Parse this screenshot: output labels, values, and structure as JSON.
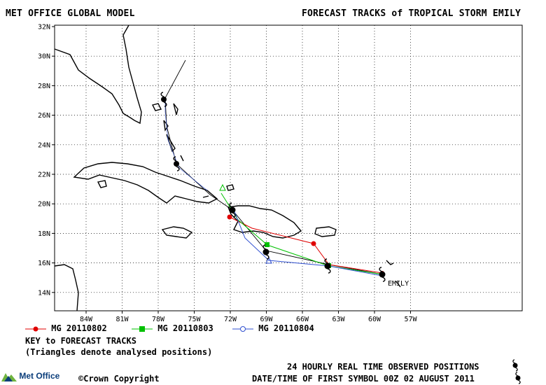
{
  "header": {
    "left_title": "MET OFFICE GLOBAL MODEL",
    "right_title": "FORECAST TRACKS of TROPICAL STORM EMILY"
  },
  "map": {
    "lat_labels": [
      "32N",
      "30N",
      "28N",
      "26N",
      "24N",
      "22N",
      "20N",
      "18N",
      "16N",
      "14N"
    ],
    "lon_labels": [
      "84W",
      "81W",
      "78W",
      "75W",
      "72W",
      "69W",
      "66W",
      "63W",
      "60W",
      "57W"
    ],
    "storm_label": "EMILY",
    "colors": {
      "red": "#e00000",
      "green": "#00c000",
      "blue": "#3050d0",
      "observed": "#000000"
    }
  },
  "legend": [
    {
      "label": "MG 20110802",
      "color": "#e00000",
      "marker": "circle"
    },
    {
      "label": "MG 20110803",
      "color": "#00c000",
      "marker": "square"
    },
    {
      "label": "MG 20110804",
      "color": "#3050d0",
      "marker": "circle-open"
    }
  ],
  "key": {
    "title": "KEY to FORECAST TRACKS",
    "note": "(Triangles denote analysed positions)"
  },
  "footer": {
    "observed": "24 HOURLY REAL TIME OBSERVED POSITIONS",
    "copyright": "Crown Copyright",
    "copyright_symbol": "©",
    "date": "DATE/TIME OF FIRST SYMBOL 00Z 02 AUGUST 2011",
    "logo_text": "Met Office"
  }
}
